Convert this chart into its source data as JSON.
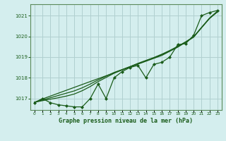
{
  "title": "Graphe pression niveau de la mer (hPa)",
  "background_color": "#d4eeee",
  "grid_color": "#b0d0d0",
  "line_color": "#1a5c1a",
  "spine_color": "#5a8a5a",
  "x_labels": [
    "0",
    "1",
    "2",
    "3",
    "4",
    "5",
    "6",
    "7",
    "8",
    "9",
    "10",
    "11",
    "12",
    "13",
    "14",
    "15",
    "16",
    "17",
    "18",
    "19",
    "20",
    "21",
    "22",
    "23"
  ],
  "y_ticks": [
    1017,
    1018,
    1019,
    1020,
    1021
  ],
  "ylim": [
    1016.45,
    1021.55
  ],
  "xlim": [
    -0.5,
    23.5
  ],
  "hours": [
    0,
    1,
    2,
    3,
    4,
    5,
    6,
    7,
    8,
    9,
    10,
    11,
    12,
    13,
    14,
    15,
    16,
    17,
    18,
    19,
    20,
    21,
    22,
    23
  ],
  "pressure_actual": [
    1016.8,
    1017.0,
    1016.8,
    1016.7,
    1016.65,
    1016.6,
    1016.6,
    1017.0,
    1017.7,
    1017.0,
    1018.0,
    1018.3,
    1018.5,
    1018.6,
    1018.0,
    1018.65,
    1018.75,
    1019.0,
    1019.6,
    1019.65,
    1020.05,
    1021.0,
    1021.15,
    1021.25
  ],
  "pressure_smooth1": [
    1016.82,
    1016.98,
    1017.12,
    1017.26,
    1017.4,
    1017.54,
    1017.68,
    1017.82,
    1017.96,
    1018.1,
    1018.24,
    1018.38,
    1018.52,
    1018.66,
    1018.8,
    1018.94,
    1019.08,
    1019.28,
    1019.48,
    1019.72,
    1019.98,
    1020.42,
    1020.88,
    1021.22
  ],
  "pressure_smooth2": [
    1016.82,
    1016.93,
    1017.04,
    1017.15,
    1017.26,
    1017.37,
    1017.52,
    1017.7,
    1017.9,
    1018.08,
    1018.26,
    1018.4,
    1018.54,
    1018.68,
    1018.82,
    1018.96,
    1019.12,
    1019.3,
    1019.5,
    1019.72,
    1019.96,
    1020.42,
    1020.86,
    1021.18
  ],
  "pressure_smooth3": [
    1016.82,
    1016.9,
    1016.97,
    1017.04,
    1017.12,
    1017.22,
    1017.38,
    1017.58,
    1017.82,
    1018.02,
    1018.22,
    1018.38,
    1018.54,
    1018.7,
    1018.84,
    1018.98,
    1019.14,
    1019.32,
    1019.52,
    1019.74,
    1019.98,
    1020.44,
    1020.88,
    1021.2
  ]
}
